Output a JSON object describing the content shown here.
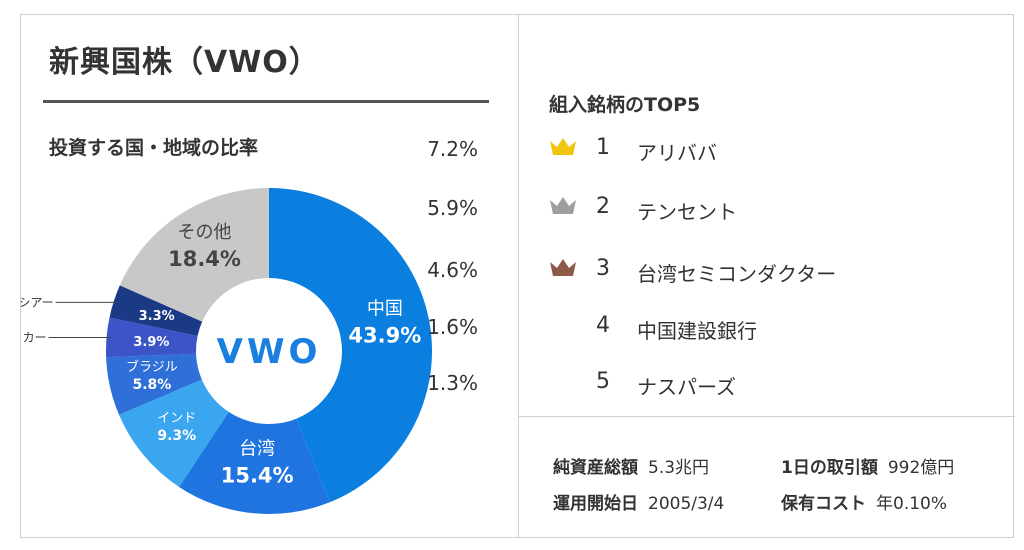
{
  "title": "新興国株（VWO）",
  "country_section": {
    "title": "投資する国・地域の比率"
  },
  "chart_data": {
    "type": "pie",
    "title": "投資する国・地域の比率",
    "center_label": "VWO",
    "slices": [
      {
        "name": "中国",
        "value": 43.9,
        "value_label": "43.9%",
        "color": "#0a7fe0",
        "label_color": "#ffffff"
      },
      {
        "name": "台湾",
        "value": 15.4,
        "value_label": "15.4%",
        "color": "#1f74e0",
        "label_color": "#ffffff"
      },
      {
        "name": "インド",
        "value": 9.3,
        "value_label": "9.3%",
        "color": "#3aa6ef",
        "label_color": "#ffffff"
      },
      {
        "name": "ブラジル",
        "value": 5.8,
        "value_label": "5.8%",
        "color": "#2e6fd8",
        "label_color": "#ffffff"
      },
      {
        "name": "南アフリカー",
        "value": 3.9,
        "value_label": "3.9%",
        "color": "#3b55c8",
        "label_color": "#ffffff"
      },
      {
        "name": "ロシアー",
        "value": 3.3,
        "value_label": "3.3%",
        "color": "#1b3a86",
        "label_color": "#ffffff"
      },
      {
        "name": "その他",
        "value": 18.4,
        "value_label": "18.4%",
        "color": "#c8c8c8",
        "label_color": "#444444"
      }
    ]
  },
  "top5": {
    "title": "組入銘柄のTOP5",
    "items": [
      {
        "rank": "1",
        "name": "アリババ",
        "percent": "7.2%",
        "crown": "gold-crown-icon",
        "crown_color": "#f1c40f"
      },
      {
        "rank": "2",
        "name": "テンセント",
        "percent": "5.9%",
        "crown": "silver-crown-icon",
        "crown_color": "#9e9e9e"
      },
      {
        "rank": "3",
        "name": "台湾セミコンダクター",
        "percent": "4.6%",
        "crown": "bronze-crown-icon",
        "crown_color": "#8d5a4a"
      },
      {
        "rank": "4",
        "name": "中国建設銀行",
        "percent": "1.6%"
      },
      {
        "rank": "5",
        "name": "ナスパーズ",
        "percent": "1.3%"
      }
    ]
  },
  "fund_info": {
    "net_assets_label": "純資産総額",
    "net_assets_value": "5.3兆円",
    "daily_volume_label": "1日の取引額",
    "daily_volume_value": "992億円",
    "inception_label": "運用開始日",
    "inception_value": "2005/3/4",
    "expense_label": "保有コスト",
    "expense_value": "年0.10%"
  }
}
